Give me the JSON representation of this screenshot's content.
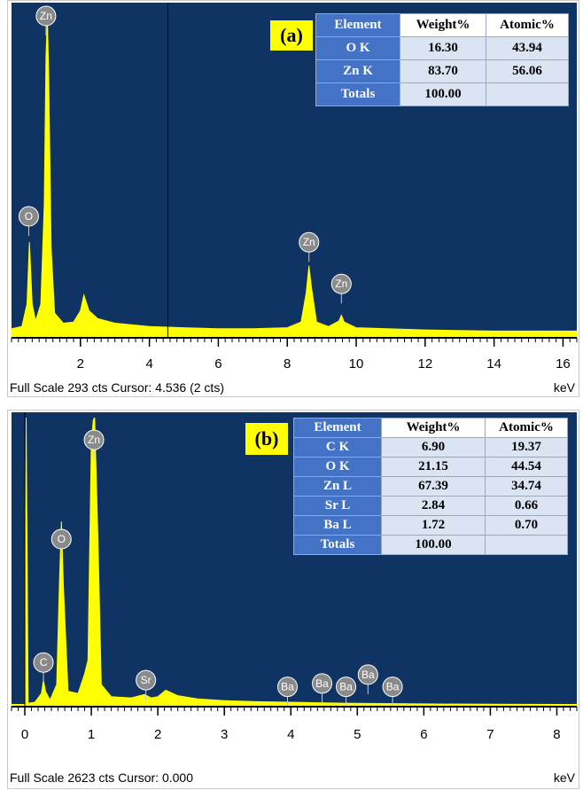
{
  "colors": {
    "plot_bg": "#0f3464",
    "spectrum": "#ffff00",
    "cursor": "#000000",
    "table_header": "#4472c4",
    "table_cell": "#dbe4f3",
    "tag_bg": "#ffff00"
  },
  "panels": [
    {
      "tag": "(a)",
      "footer": "Full Scale 293 cts Cursor: 4.536  (2 cts)",
      "unit": "keV",
      "table": {
        "headers": [
          "Element",
          "Weight%",
          "Atomic%"
        ],
        "rows": [
          [
            "O K",
            "16.30",
            "43.94"
          ],
          [
            "Zn K",
            "83.70",
            "56.06"
          ],
          [
            "Totals",
            "100.00",
            ""
          ]
        ]
      }
    },
    {
      "tag": "(b)",
      "footer": "Full Scale 2623 cts Cursor: 0.000",
      "unit": "keV",
      "table": {
        "headers": [
          "Element",
          "Weight%",
          "Atomic%"
        ],
        "rows": [
          [
            "C K",
            "6.90",
            "19.37"
          ],
          [
            "O K",
            "21.15",
            "44.54"
          ],
          [
            "Zn L",
            "67.39",
            "34.74"
          ],
          [
            "Sr L",
            "2.84",
            "0.66"
          ],
          [
            "Ba L",
            "1.72",
            "0.70"
          ],
          [
            "Totals",
            "100.00",
            ""
          ]
        ]
      }
    }
  ],
  "chart_data": [
    {
      "type": "line",
      "title": "",
      "xlabel": "keV",
      "xlim": [
        0,
        16.4
      ],
      "ylim": [
        0,
        293
      ],
      "x_ticks": [
        2,
        4,
        6,
        8,
        10,
        12,
        14,
        16
      ],
      "cursor_x": 4.536,
      "points": [
        [
          0.0,
          8
        ],
        [
          0.3,
          10
        ],
        [
          0.45,
          30
        ],
        [
          0.52,
          85
        ],
        [
          0.6,
          30
        ],
        [
          0.7,
          15
        ],
        [
          0.85,
          30
        ],
        [
          0.95,
          120
        ],
        [
          1.0,
          250
        ],
        [
          1.04,
          285
        ],
        [
          1.08,
          230
        ],
        [
          1.15,
          80
        ],
        [
          1.25,
          22
        ],
        [
          1.5,
          13
        ],
        [
          1.8,
          14
        ],
        [
          2.0,
          24
        ],
        [
          2.1,
          38
        ],
        [
          2.25,
          24
        ],
        [
          2.5,
          17
        ],
        [
          3.0,
          13
        ],
        [
          4.0,
          10
        ],
        [
          5.0,
          9
        ],
        [
          6.0,
          8
        ],
        [
          7.0,
          8
        ],
        [
          8.0,
          9
        ],
        [
          8.4,
          14
        ],
        [
          8.55,
          40
        ],
        [
          8.63,
          64
        ],
        [
          8.7,
          45
        ],
        [
          8.85,
          14
        ],
        [
          9.2,
          10
        ],
        [
          9.5,
          15
        ],
        [
          9.57,
          20
        ],
        [
          9.65,
          14
        ],
        [
          10.0,
          9
        ],
        [
          12.0,
          7
        ],
        [
          14.0,
          6
        ],
        [
          16.4,
          6
        ]
      ],
      "peak_labels": [
        {
          "label": "Zn",
          "x": 1.0,
          "y": 278
        },
        {
          "label": "O",
          "x": 0.5,
          "y": 100
        },
        {
          "label": "Zn",
          "x": 8.63,
          "y": 77
        },
        {
          "label": "Zn",
          "x": 9.57,
          "y": 40
        }
      ]
    },
    {
      "type": "line",
      "title": "",
      "xlabel": "keV",
      "xlim": [
        -0.2,
        8.3
      ],
      "ylim": [
        0,
        2623
      ],
      "x_ticks": [
        0,
        1,
        2,
        3,
        4,
        5,
        6,
        7,
        8
      ],
      "cursor_x": 0.0,
      "points": [
        [
          -0.2,
          20
        ],
        [
          0.0,
          20
        ],
        [
          0.02,
          2623
        ],
        [
          0.05,
          30
        ],
        [
          0.15,
          40
        ],
        [
          0.25,
          120
        ],
        [
          0.28,
          240
        ],
        [
          0.31,
          140
        ],
        [
          0.38,
          60
        ],
        [
          0.48,
          200
        ],
        [
          0.52,
          1100
        ],
        [
          0.55,
          1680
        ],
        [
          0.58,
          1100
        ],
        [
          0.65,
          140
        ],
        [
          0.8,
          120
        ],
        [
          0.9,
          300
        ],
        [
          0.95,
          420
        ],
        [
          1.0,
          2400
        ],
        [
          1.03,
          2600
        ],
        [
          1.05,
          2623
        ],
        [
          1.1,
          1500
        ],
        [
          1.15,
          200
        ],
        [
          1.3,
          90
        ],
        [
          1.6,
          80
        ],
        [
          1.8,
          110
        ],
        [
          1.9,
          80
        ],
        [
          2.0,
          90
        ],
        [
          2.12,
          150
        ],
        [
          2.3,
          100
        ],
        [
          2.6,
          70
        ],
        [
          3.0,
          55
        ],
        [
          3.5,
          45
        ],
        [
          4.0,
          40
        ],
        [
          4.5,
          35
        ],
        [
          5.0,
          30
        ],
        [
          6.0,
          25
        ],
        [
          7.0,
          22
        ],
        [
          8.3,
          20
        ]
      ],
      "peak_labels": [
        {
          "label": "Zn",
          "x": 1.04,
          "y": 2340
        },
        {
          "label": "O",
          "x": 0.55,
          "y": 1440
        },
        {
          "label": "C",
          "x": 0.28,
          "y": 320
        },
        {
          "label": "Sr",
          "x": 1.82,
          "y": 160
        },
        {
          "label": "Ba",
          "x": 3.95,
          "y": 100
        },
        {
          "label": "Ba",
          "x": 4.47,
          "y": 130
        },
        {
          "label": "Ba",
          "x": 4.83,
          "y": 100
        },
        {
          "label": "Ba",
          "x": 5.16,
          "y": 210
        },
        {
          "label": "Ba",
          "x": 5.53,
          "y": 100
        }
      ]
    }
  ]
}
